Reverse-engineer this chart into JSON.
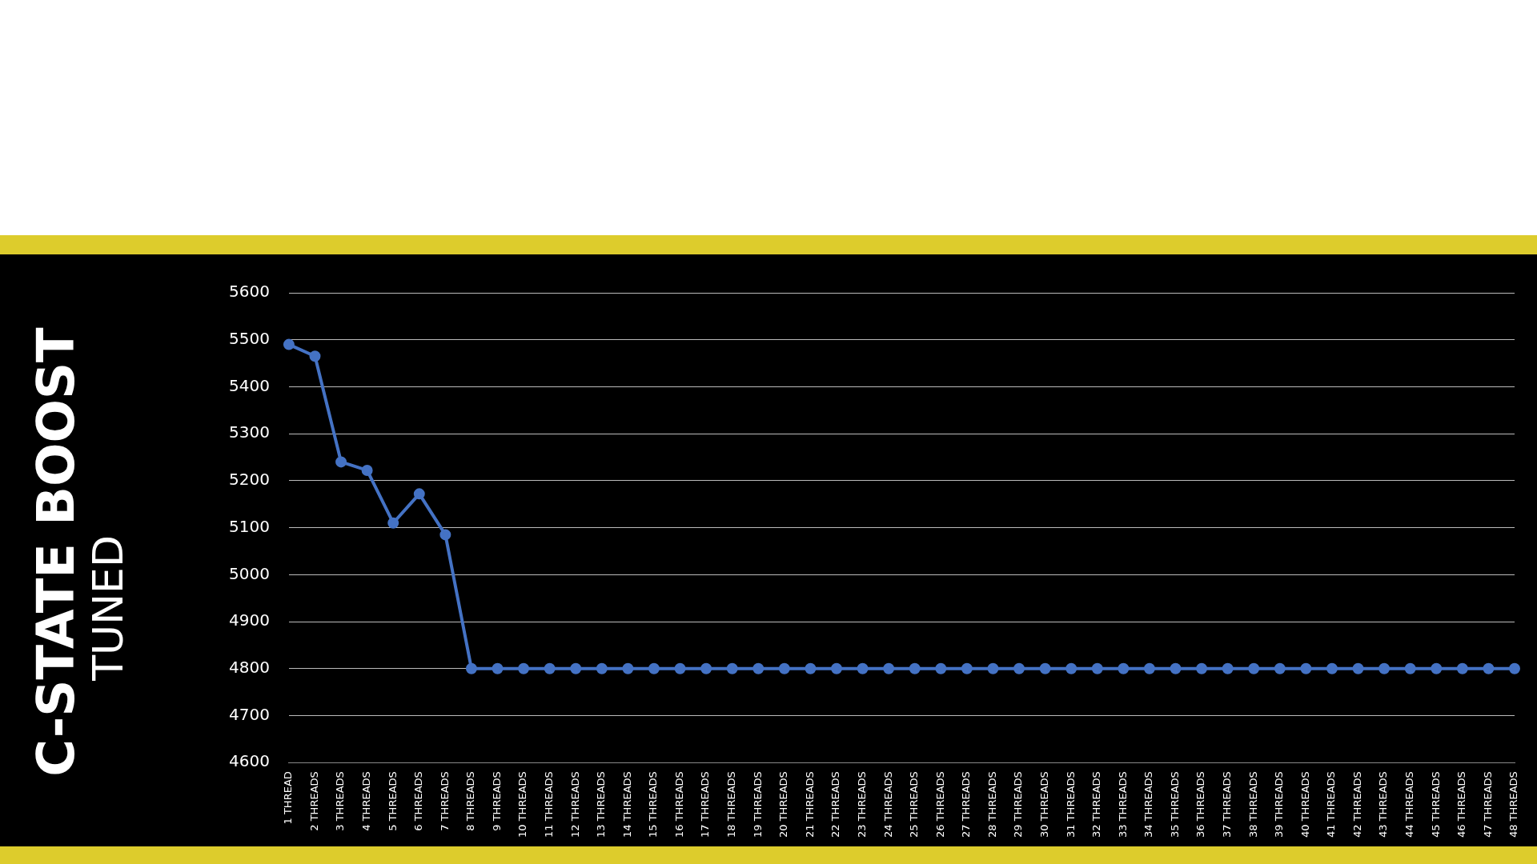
{
  "chart_data": {
    "type": "line",
    "title": "C-STATE BOOST",
    "subtitle": "TUNED",
    "categories": [
      "1 THREAD",
      "2 THREADS",
      "3 THREADS",
      "4 THREADS",
      "5 THREADS",
      "6 THREADS",
      "7 THREADS",
      "8 THREADS",
      "9 THREADS",
      "10 THREADS",
      "11 THREADS",
      "12 THREADS",
      "13 THREADS",
      "14 THREADS",
      "15 THREADS",
      "16 THREADS",
      "17 THREADS",
      "18 THREADS",
      "19 THREADS",
      "20 THREADS",
      "21 THREADS",
      "22 THREADS",
      "23 THREADS",
      "24 THREADS",
      "25 THREADS",
      "26 THREADS",
      "27 THREADS",
      "28 THREADS",
      "29 THREADS",
      "30 THREADS",
      "31 THREADS",
      "32 THREADS",
      "33 THREADS",
      "34 THREADS",
      "35 THREADS",
      "36 THREADS",
      "37 THREADS",
      "38 THREADS",
      "39 THREADS",
      "40 THREADS",
      "41 THREADS",
      "42 THREADS",
      "43 THREADS",
      "44 THREADS",
      "45 THREADS",
      "46 THREADS",
      "47 THREADS",
      "48 THREADS"
    ],
    "series": [
      {
        "color": "#4472c4",
        "values": [
          5490,
          5465,
          5240,
          5222,
          5110,
          5172,
          5085,
          4800,
          4800,
          4800,
          4800,
          4800,
          4800,
          4800,
          4800,
          4800,
          4800,
          4800,
          4800,
          4800,
          4800,
          4800,
          4800,
          4800,
          4800,
          4800,
          4800,
          4800,
          4800,
          4800,
          4800,
          4800,
          4800,
          4800,
          4800,
          4800,
          4800,
          4800,
          4800,
          4800,
          4800,
          4800,
          4800,
          4800,
          4800,
          4800,
          4800,
          4800
        ]
      }
    ],
    "ylim": [
      4600,
      5600
    ],
    "yticks": [
      4600,
      4700,
      4800,
      4900,
      5000,
      5100,
      5200,
      5300,
      5400,
      5500,
      5600
    ],
    "grid": "y",
    "marker": "circle",
    "line_style": "solid"
  }
}
